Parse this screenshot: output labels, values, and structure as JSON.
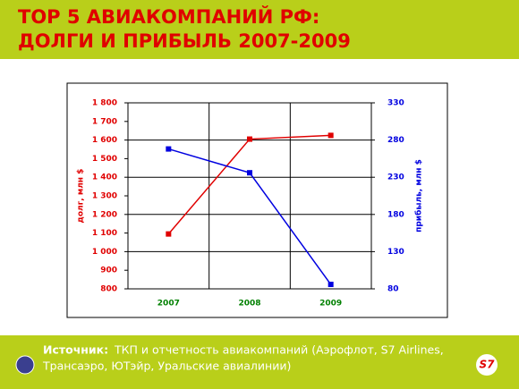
{
  "chart_data": {
    "type": "line",
    "title": "TOP 5 АВИАКОМПАНИЙ РФ:",
    "subtitle": "ДОЛГИ И ПРИБЫЛЬ 2007-2009",
    "categories": [
      "2007",
      "2008",
      "2009"
    ],
    "series": [
      {
        "name": "долг, млн $",
        "color": "#e00000",
        "values": [
          1095,
          1605,
          1625
        ]
      },
      {
        "name": "прибыль, млн $",
        "color": "#0000e0",
        "axis": "y2",
        "values": [
          268,
          236,
          86
        ]
      }
    ],
    "ylabel": "долг, млн $",
    "y2label": "прибыль, млн $",
    "ylim": [
      800,
      1800
    ],
    "yticks": [
      {
        "value": 800,
        "label": "800"
      },
      {
        "value": 900,
        "label": "900"
      },
      {
        "value": 1000,
        "label": "1 000"
      },
      {
        "value": 1100,
        "label": "1 100"
      },
      {
        "value": 1200,
        "label": "1 200"
      },
      {
        "value": 1300,
        "label": "1 300"
      },
      {
        "value": 1400,
        "label": "1 400"
      },
      {
        "value": 1500,
        "label": "1 500"
      },
      {
        "value": 1600,
        "label": "1 600"
      },
      {
        "value": 1700,
        "label": "1 700"
      },
      {
        "value": 1800,
        "label": "1 800"
      }
    ],
    "y2lim": [
      80,
      330
    ],
    "y2ticks": [
      80,
      130,
      180,
      230,
      280,
      330
    ],
    "grid": true
  },
  "footer": {
    "source_label": "Источник:",
    "source_lines": [
      "ТКП и отчетность авиакомпаний (Аэрофлот, S7 Airlines,",
      "Трансаэро, ЮТэйр, Уральские авиалинии)"
    ],
    "logo": "S7"
  }
}
